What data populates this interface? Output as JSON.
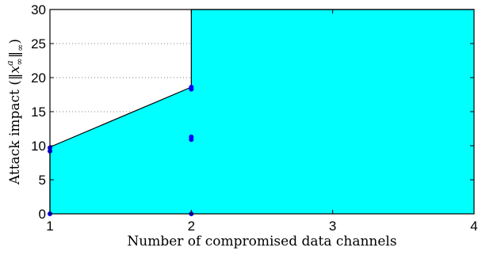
{
  "chart_data": {
    "type": "area",
    "title": "",
    "xlabel": "Number of compromised data channels",
    "ylabel": "Attack impact (‖x∞^a‖∞)",
    "ylabel_parts": {
      "prefix": "Attack impact (",
      "norm_open": "‖",
      "var": "x",
      "sup": "a",
      "sub": "∞",
      "norm_close": "‖",
      "norm_sub": "∞",
      "suffix": ")"
    },
    "xlim": [
      1,
      4
    ],
    "ylim": [
      0,
      30
    ],
    "xticks": [
      1,
      2,
      3,
      4
    ],
    "yticks": [
      0,
      5,
      10,
      15,
      20,
      25,
      30
    ],
    "grid": "horizontal dotted",
    "region_color": "#00ffff",
    "point_color": "#0000ff",
    "boundary": {
      "x": [
        1,
        1,
        2,
        2,
        2,
        4
      ],
      "y": [
        0,
        9.8,
        18.6,
        30,
        30,
        30
      ]
    },
    "points": [
      {
        "x": 1,
        "y": 0
      },
      {
        "x": 1,
        "y": 9.2
      },
      {
        "x": 1,
        "y": 9.7
      },
      {
        "x": 2,
        "y": 0
      },
      {
        "x": 2,
        "y": 10.9
      },
      {
        "x": 2,
        "y": 11.3
      },
      {
        "x": 2,
        "y": 18.3
      },
      {
        "x": 2,
        "y": 18.6
      }
    ]
  }
}
